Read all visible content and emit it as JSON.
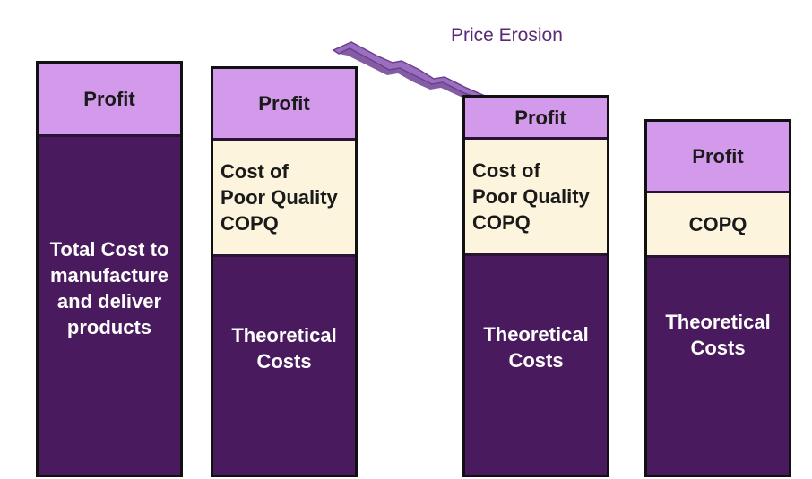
{
  "colors": {
    "profit": "#d39aeb",
    "copq": "#fdf4dd",
    "cost": "#4a1a5e",
    "arrow": "#8e5fb0",
    "border": "#111111"
  },
  "annotation": {
    "price_erosion": "Price Erosion"
  },
  "columns": [
    {
      "profit": "Profit",
      "cost": "Total Cost to\nmanufacture\nand deliver\nproducts"
    },
    {
      "profit": "Profit",
      "copq": "Cost of\nPoor Quality\nCOPQ",
      "cost": "Theoretical\nCosts"
    },
    {
      "profit": "Profit",
      "copq": "Cost of\nPoor Quality\nCOPQ",
      "cost": "Theoretical\nCosts"
    },
    {
      "profit": "Profit",
      "copq": "COPQ",
      "cost": "Theoretical\nCosts"
    }
  ]
}
